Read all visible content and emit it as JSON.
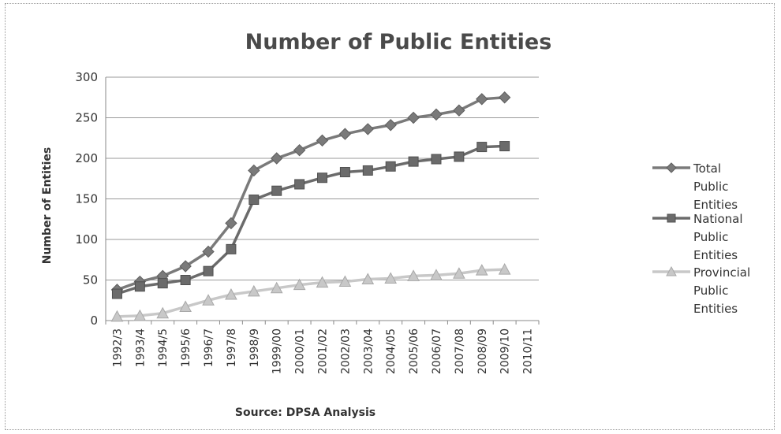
{
  "chart_data": {
    "type": "line",
    "title": "Number of Public Entities",
    "ylabel": "Number of Entities",
    "xlabel": "",
    "source": "Source: DPSA Analysis",
    "ylim": [
      0,
      300
    ],
    "yticks": [
      0,
      50,
      100,
      150,
      200,
      250,
      300
    ],
    "grid": true,
    "legend_position": "right",
    "categories": [
      "1992/3",
      "1993/4",
      "1994/5",
      "1995/6",
      "1996/7",
      "1997/8",
      "1998/9",
      "1999/00",
      "2000/01",
      "2001/02",
      "2002/03",
      "2003/04",
      "2004/05",
      "2005/06",
      "2006/07",
      "2007/08",
      "2008/09",
      "2009/10",
      "2010/11"
    ],
    "series": [
      {
        "name": "Total Public Entities",
        "legend_lines": [
          "Total",
          "Public",
          "Entities"
        ],
        "marker": "diamond",
        "color": "#7a7a7a",
        "values": [
          38,
          48,
          55,
          67,
          85,
          120,
          185,
          200,
          210,
          222,
          230,
          236,
          241,
          250,
          254,
          259,
          273,
          275,
          null
        ]
      },
      {
        "name": "National Public Entities",
        "legend_lines": [
          "National",
          "Public",
          "Entities"
        ],
        "marker": "square",
        "color": "#6b6b6b",
        "values": [
          33,
          42,
          46,
          50,
          61,
          88,
          149,
          160,
          168,
          176,
          183,
          185,
          190,
          196,
          199,
          202,
          214,
          215,
          null
        ]
      },
      {
        "name": "Provincial Public Entities",
        "legend_lines": [
          "Provincial",
          "Public",
          "Entities"
        ],
        "marker": "triangle",
        "color": "#c8c8c8",
        "values": [
          5,
          6,
          9,
          17,
          25,
          32,
          36,
          40,
          44,
          47,
          48,
          51,
          52,
          55,
          56,
          58,
          62,
          63,
          null
        ]
      }
    ]
  }
}
